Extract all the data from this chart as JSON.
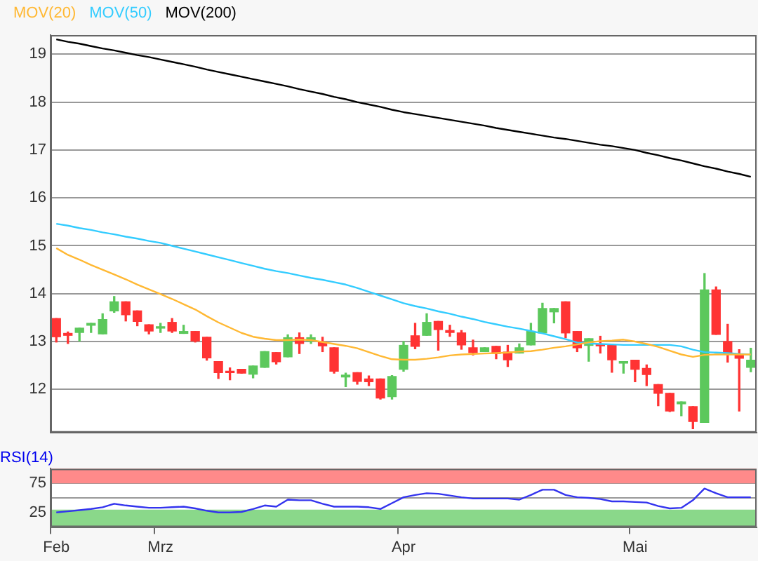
{
  "chart_data": [
    {
      "type": "candlestick",
      "categories": [
        null,
        null,
        null,
        null,
        null,
        null,
        null,
        null,
        null,
        null,
        null,
        null,
        null,
        null,
        null,
        null,
        null,
        null,
        null,
        null,
        null,
        null,
        null,
        null,
        null,
        null,
        null,
        null,
        null,
        null,
        null,
        null,
        null,
        null,
        null,
        null,
        null,
        null,
        null,
        null,
        null,
        null,
        null,
        null,
        null,
        null,
        null,
        null,
        null,
        null,
        null,
        null,
        null,
        null,
        null,
        null,
        null,
        null,
        null,
        null,
        null
      ],
      "ohlc": [
        [
          13.48,
          13.48,
          12.99,
          13.1
        ],
        [
          13.17,
          13.2,
          12.96,
          13.13
        ],
        [
          13.19,
          13.28,
          13.01,
          13.28
        ],
        [
          13.34,
          13.38,
          13.19,
          13.38
        ],
        [
          13.16,
          13.58,
          13.16,
          13.46
        ],
        [
          13.64,
          13.94,
          13.61,
          13.83
        ],
        [
          13.83,
          13.83,
          13.43,
          13.56
        ],
        [
          13.64,
          13.64,
          13.33,
          13.42
        ],
        [
          13.35,
          13.35,
          13.16,
          13.22
        ],
        [
          13.28,
          13.38,
          13.19,
          13.31
        ],
        [
          13.4,
          13.48,
          13.19,
          13.22
        ],
        [
          13.17,
          13.34,
          13.17,
          13.21
        ],
        [
          13.21,
          13.21,
          12.99,
          13.01
        ],
        [
          13.09,
          13.09,
          12.61,
          12.66
        ],
        [
          12.58,
          12.58,
          12.23,
          12.35
        ],
        [
          12.38,
          12.45,
          12.2,
          12.35
        ],
        [
          12.42,
          12.42,
          12.34,
          12.34
        ],
        [
          12.32,
          12.49,
          12.24,
          12.49
        ],
        [
          12.46,
          12.79,
          12.46,
          12.79
        ],
        [
          12.77,
          12.77,
          12.53,
          12.58
        ],
        [
          12.68,
          13.14,
          12.68,
          13.08
        ],
        [
          13.08,
          13.18,
          12.75,
          12.96
        ],
        [
          13.01,
          13.14,
          12.96,
          13.08
        ],
        [
          12.99,
          13.09,
          12.79,
          12.91
        ],
        [
          12.87,
          12.87,
          12.34,
          12.38
        ],
        [
          12.26,
          12.34,
          12.06,
          12.3
        ],
        [
          12.35,
          12.35,
          12.11,
          12.17
        ],
        [
          12.22,
          12.28,
          12.08,
          12.16
        ],
        [
          12.22,
          12.22,
          11.8,
          11.82
        ],
        [
          11.85,
          12.29,
          11.8,
          12.27
        ],
        [
          12.42,
          13.0,
          12.38,
          12.92
        ],
        [
          13.12,
          13.38,
          12.85,
          12.9
        ],
        [
          13.13,
          13.58,
          13.13,
          13.4
        ],
        [
          13.42,
          13.42,
          12.82,
          13.25
        ],
        [
          13.23,
          13.34,
          13.11,
          13.19
        ],
        [
          13.18,
          13.23,
          12.84,
          12.93
        ],
        [
          12.87,
          13.03,
          12.72,
          12.77
        ],
        [
          12.79,
          12.87,
          12.79,
          12.87
        ],
        [
          12.9,
          12.9,
          12.64,
          12.75
        ],
        [
          12.78,
          12.92,
          12.48,
          12.62
        ],
        [
          12.76,
          12.95,
          12.76,
          12.87
        ],
        [
          12.93,
          13.38,
          12.93,
          13.21
        ],
        [
          13.18,
          13.8,
          13.18,
          13.69
        ],
        [
          13.62,
          13.69,
          13.39,
          13.69
        ],
        [
          13.83,
          13.83,
          13.08,
          13.18
        ],
        [
          13.21,
          13.21,
          12.79,
          12.87
        ],
        [
          12.92,
          13.06,
          12.59,
          13.06
        ],
        [
          12.93,
          13.11,
          12.76,
          12.91
        ],
        [
          12.93,
          12.93,
          12.36,
          12.62
        ],
        [
          12.55,
          12.58,
          12.34,
          12.58
        ],
        [
          12.61,
          12.61,
          12.16,
          12.42
        ],
        [
          12.44,
          12.51,
          12.08,
          12.31
        ],
        [
          12.1,
          12.1,
          11.66,
          11.92
        ],
        [
          11.92,
          11.92,
          11.54,
          11.55
        ],
        [
          11.7,
          11.74,
          11.45,
          11.74
        ],
        [
          11.64,
          11.64,
          11.18,
          11.33
        ],
        [
          11.31,
          14.42,
          11.31,
          14.08
        ],
        [
          14.08,
          14.14,
          13.15,
          13.15
        ],
        [
          13.0,
          13.36,
          12.57,
          12.74
        ],
        [
          12.72,
          12.83,
          11.55,
          12.65
        ],
        [
          12.46,
          12.86,
          12.37,
          12.61
        ]
      ],
      "series": [
        {
          "name": "MOV(20)",
          "type": "line",
          "color": "#ffb833",
          "values": [
            14.95,
            14.81,
            14.71,
            14.6,
            14.5,
            14.4,
            14.3,
            14.19,
            14.09,
            13.99,
            13.89,
            13.78,
            13.67,
            13.53,
            13.4,
            13.29,
            13.18,
            13.1,
            13.06,
            13.03,
            13.03,
            13.04,
            13.03,
            12.99,
            12.95,
            12.91,
            12.86,
            12.78,
            12.7,
            12.63,
            12.62,
            12.62,
            12.64,
            12.67,
            12.71,
            12.73,
            12.74,
            12.75,
            12.76,
            12.77,
            12.79,
            12.8,
            12.83,
            12.87,
            12.9,
            12.94,
            12.98,
            13.01,
            13.02,
            13.04,
            13.0,
            12.95,
            12.89,
            12.81,
            12.73,
            12.68,
            12.72,
            12.73,
            12.73,
            12.73,
            12.73
          ]
        },
        {
          "name": "MOV(50)",
          "type": "line",
          "color": "#33ccff",
          "values": [
            15.46,
            15.42,
            15.37,
            15.33,
            15.28,
            15.24,
            15.19,
            15.15,
            15.1,
            15.06,
            15.0,
            14.94,
            14.88,
            14.82,
            14.76,
            14.7,
            14.64,
            14.58,
            14.52,
            14.47,
            14.43,
            14.38,
            14.33,
            14.29,
            14.24,
            14.19,
            14.12,
            14.04,
            13.96,
            13.88,
            13.8,
            13.74,
            13.69,
            13.63,
            13.58,
            13.52,
            13.47,
            13.41,
            13.36,
            13.31,
            13.27,
            13.22,
            13.17,
            13.11,
            13.05,
            12.98,
            12.96,
            12.95,
            12.94,
            12.93,
            12.93,
            12.93,
            12.93,
            12.93,
            12.9,
            12.83,
            12.78,
            12.77,
            12.76,
            12.74,
            12.73
          ]
        },
        {
          "name": "MOV(200)",
          "type": "line",
          "color": "#000000",
          "values": [
            19.31,
            19.26,
            19.22,
            19.17,
            19.12,
            19.08,
            19.03,
            18.98,
            18.94,
            18.89,
            18.84,
            18.79,
            18.74,
            18.68,
            18.63,
            18.58,
            18.53,
            18.48,
            18.43,
            18.38,
            18.33,
            18.27,
            18.22,
            18.17,
            18.11,
            18.06,
            18.0,
            17.95,
            17.9,
            17.84,
            17.79,
            17.75,
            17.71,
            17.67,
            17.63,
            17.59,
            17.55,
            17.51,
            17.46,
            17.42,
            17.38,
            17.34,
            17.3,
            17.26,
            17.23,
            17.19,
            17.15,
            17.11,
            17.08,
            17.04,
            17.0,
            16.94,
            16.89,
            16.83,
            16.78,
            16.72,
            16.66,
            16.61,
            16.55,
            16.5,
            16.44
          ]
        }
      ],
      "ylim": [
        11.1,
        19.4
      ],
      "yticks": [
        12,
        13,
        14,
        15,
        16,
        17,
        18,
        19
      ],
      "grid": "y",
      "legend": "top left",
      "tick_labels": "y"
    },
    {
      "type": "line",
      "title": "RSI(14)",
      "categories": [
        "Feb",
        null,
        null,
        null,
        null,
        null,
        null,
        null,
        null,
        "Mrz",
        null,
        null,
        null,
        null,
        null,
        null,
        null,
        null,
        null,
        null,
        null,
        null,
        null,
        null,
        null,
        null,
        null,
        null,
        null,
        null,
        "Apr",
        null,
        null,
        null,
        null,
        null,
        null,
        null,
        null,
        null,
        null,
        null,
        null,
        null,
        null,
        null,
        null,
        null,
        null,
        null,
        "Mai",
        null,
        null,
        null,
        null,
        null,
        null,
        null,
        null,
        null,
        null
      ],
      "series": [
        {
          "color": "#3333ee",
          "values": [
            25,
            27,
            29,
            31,
            34,
            40,
            37,
            35,
            33,
            33,
            34,
            35,
            32,
            28,
            25,
            25,
            26,
            31,
            37,
            35,
            47,
            46,
            46,
            40,
            35,
            35,
            35,
            34,
            31,
            41,
            51,
            55,
            58,
            57,
            54,
            51,
            49,
            49,
            49,
            49,
            47,
            55,
            64,
            64,
            55,
            51,
            50,
            48,
            44,
            44,
            43,
            42,
            36,
            32,
            33,
            46,
            66,
            58,
            51,
            51,
            51
          ]
        }
      ],
      "bands": [
        {
          "axis": "y",
          "from": 75,
          "to": 100,
          "color": "#ff8a8a"
        },
        {
          "axis": "y",
          "from": 0,
          "to": 30,
          "color": "#8ad88a"
        }
      ],
      "ylim": [
        0,
        100
      ],
      "yticks": [
        25,
        {
          "value": 50,
          "label": null
        },
        75
      ],
      "grid": "y"
    }
  ]
}
